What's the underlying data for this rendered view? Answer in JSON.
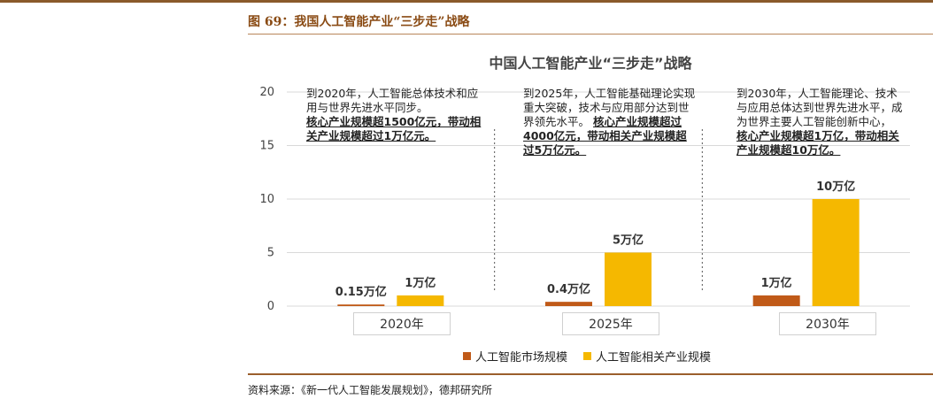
{
  "figure_caption": "图 69：我国人工智能产业“三步走”战略",
  "source": "资料来源：《新一代人工智能发展规划》，德邦研究所",
  "colors": {
    "market": "#c05a18",
    "related": "#f5b800",
    "caption": "#8a4b14"
  },
  "notes": [
    {
      "plain": "到2020年，人工智能总体技术和应用与世界先进水平同步。",
      "bold": "核心产业规模超1500亿元，带动相关产业规模超过1万亿元。"
    },
    {
      "plain": "到2025年，人工智能基础理论实现重大突破，技术与应用部分达到世界领先水平。",
      "bold": "核心产业规模超过4000亿元，带动相关产业规模超过5万亿元。"
    },
    {
      "plain": "到2030年，人工智能理论、技术与应用总体达到世界先进水平，成为世界主要人工智能创新中心，",
      "bold": "核心产业规模超1万亿，带动相关产业规模超10万亿。"
    }
  ],
  "chart_data": {
    "type": "bar",
    "title": "中国人工智能产业“三步走”战略",
    "categories": [
      "2020年",
      "2025年",
      "2030年"
    ],
    "series": [
      {
        "name": "人工智能市场规模",
        "values": [
          0.15,
          0.4,
          1
        ],
        "labels": [
          "0.15万亿",
          "0.4万亿",
          "1万亿"
        ]
      },
      {
        "name": "人工智能相关产业规模",
        "values": [
          1,
          5,
          10
        ],
        "labels": [
          "1万亿",
          "5万亿",
          "10万亿"
        ]
      }
    ],
    "yticks": [
      0,
      5,
      10,
      15,
      20
    ],
    "ylim": [
      0,
      20
    ],
    "grid": true,
    "legend": "bottom"
  }
}
